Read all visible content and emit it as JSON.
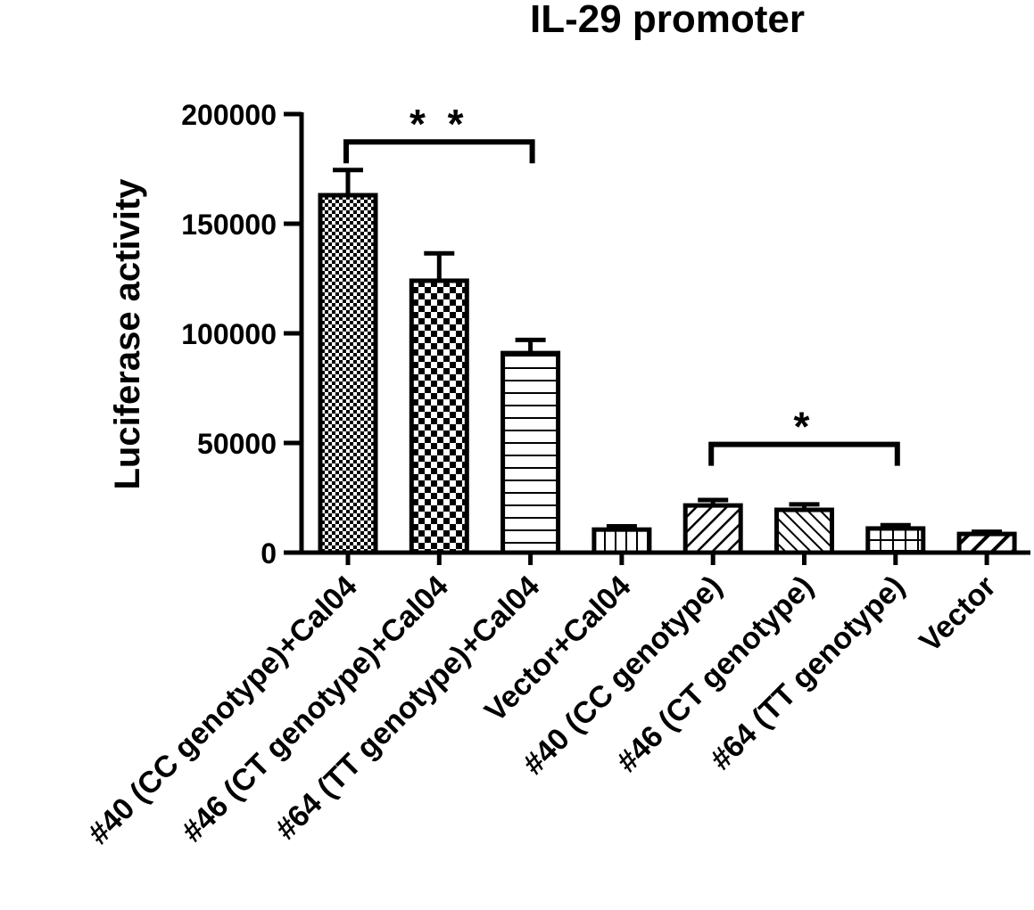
{
  "chart_data": {
    "type": "bar",
    "title": "IL-29 promoter",
    "xlabel": "",
    "ylabel": "Luciferase activity",
    "ylim": [
      0,
      200000
    ],
    "yticks": [
      "0",
      "50000",
      "100000",
      "150000",
      "200000"
    ],
    "categories": [
      "#40 (CC genotype)+Cal04",
      "#46 (CT genotype)+Cal04",
      "#64 (TT genotype)+Cal04",
      "Vector+Cal04",
      "#40 (CC genotype)",
      "#46 (CT genotype)",
      "#64 (TT genotype)",
      "Vector"
    ],
    "values": [
      163000,
      124000,
      91000,
      10500,
      21500,
      19500,
      11000,
      8500
    ],
    "errors": [
      11500,
      12500,
      6000,
      1500,
      2500,
      2500,
      1500,
      1000
    ],
    "patterns": [
      "checker-fine",
      "checker-coarse",
      "horizontal-lines",
      "vertical-lines",
      "diagonal-up",
      "diagonal-down",
      "grid",
      "diagonal-up-coarse"
    ],
    "significance": [
      {
        "from": 0,
        "to": 2,
        "label": "**",
        "level": 180000
      },
      {
        "from": 4,
        "to": 6,
        "label": "*",
        "level": 42000
      }
    ],
    "grid": false,
    "legend": "none"
  }
}
